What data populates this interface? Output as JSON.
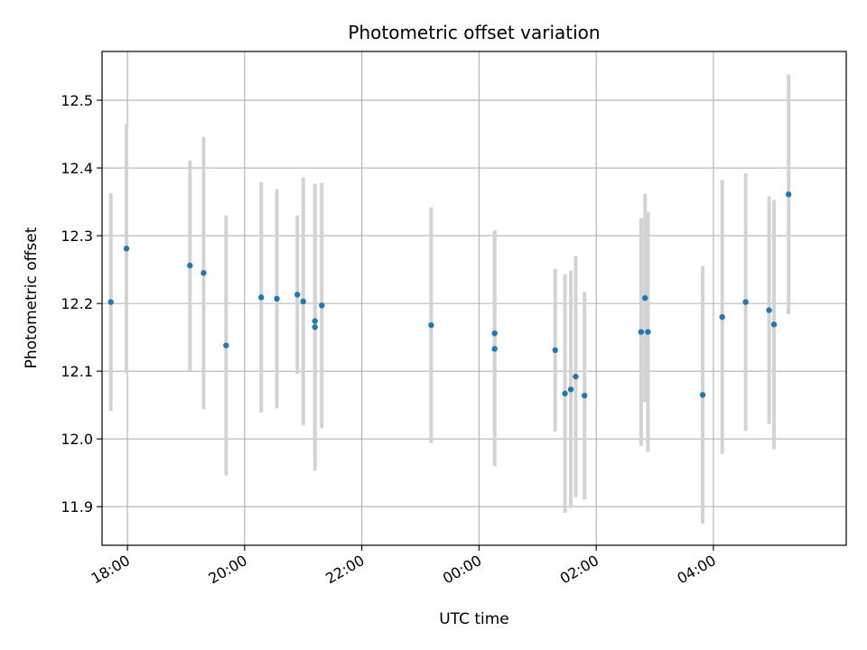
{
  "chart_data": {
    "type": "scatter",
    "title": "Photometric offset variation",
    "xlabel": "UTC time",
    "ylabel": "Photometric offset",
    "x_unit": "UTC datetime (evening of day 1 through early morning of day 2)",
    "xlim": [
      "17:34",
      "06:16"
    ],
    "ylim": [
      11.843,
      12.572
    ],
    "x_ticks": [
      "18:00",
      "20:00",
      "22:00",
      "00:00",
      "02:00",
      "04:00"
    ],
    "y_ticks": [
      "11.9",
      "12.0",
      "12.1",
      "12.2",
      "12.3",
      "12.4",
      "12.5"
    ],
    "grid": true,
    "marker_color": "#1f77b4",
    "errorbar_color": "#d3d3d3",
    "points": [
      {
        "time": "17:43",
        "y": 12.202,
        "err": 0.161
      },
      {
        "time": "17:59",
        "y": 12.281,
        "err": 0.184
      },
      {
        "time": "19:04",
        "y": 12.256,
        "err": 0.155
      },
      {
        "time": "19:18",
        "y": 12.245,
        "err": 0.201
      },
      {
        "time": "19:41",
        "y": 12.138,
        "err": 0.192
      },
      {
        "time": "20:17",
        "y": 12.209,
        "err": 0.17
      },
      {
        "time": "20:33",
        "y": 12.207,
        "err": 0.162
      },
      {
        "time": "20:54",
        "y": 12.213,
        "err": 0.117
      },
      {
        "time": "21:00",
        "y": 12.203,
        "err": 0.183
      },
      {
        "time": "21:12",
        "y": 12.174,
        "err": 0.198
      },
      {
        "time": "21:12",
        "y": 12.165,
        "err": 0.212
      },
      {
        "time": "21:19",
        "y": 12.197,
        "err": 0.181
      },
      {
        "time": "23:11",
        "y": 12.168,
        "err": 0.174
      },
      {
        "time": "00:16",
        "y": 12.156,
        "err": 0.152
      },
      {
        "time": "00:16",
        "y": 12.133,
        "err": 0.173
      },
      {
        "time": "01:18",
        "y": 12.131,
        "err": 0.12
      },
      {
        "time": "01:28",
        "y": 12.067,
        "err": 0.176
      },
      {
        "time": "01:34",
        "y": 12.073,
        "err": 0.175
      },
      {
        "time": "01:39",
        "y": 12.092,
        "err": 0.178
      },
      {
        "time": "01:48",
        "y": 12.064,
        "err": 0.153
      },
      {
        "time": "02:46",
        "y": 12.158,
        "err": 0.168
      },
      {
        "time": "02:50",
        "y": 12.208,
        "err": 0.154
      },
      {
        "time": "02:53",
        "y": 12.158,
        "err": 0.177
      },
      {
        "time": "03:49",
        "y": 12.065,
        "err": 0.19
      },
      {
        "time": "04:09",
        "y": 12.18,
        "err": 0.202
      },
      {
        "time": "04:33",
        "y": 12.202,
        "err": 0.19
      },
      {
        "time": "04:57",
        "y": 12.19,
        "err": 0.168
      },
      {
        "time": "05:02",
        "y": 12.169,
        "err": 0.184
      },
      {
        "time": "05:17",
        "y": 12.361,
        "err": 0.177
      }
    ]
  }
}
